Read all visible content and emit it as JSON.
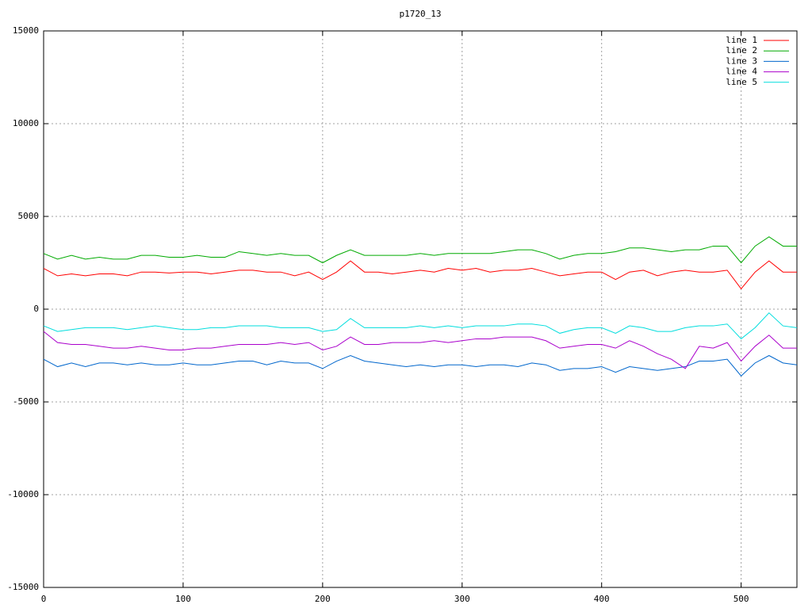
{
  "chart_data": {
    "type": "line",
    "title": "p1720_13",
    "x": [
      0,
      10,
      20,
      30,
      40,
      50,
      60,
      70,
      80,
      90,
      100,
      110,
      120,
      130,
      140,
      150,
      160,
      170,
      180,
      190,
      200,
      210,
      220,
      230,
      240,
      250,
      260,
      270,
      280,
      290,
      300,
      310,
      320,
      330,
      340,
      350,
      360,
      370,
      380,
      390,
      400,
      410,
      420,
      430,
      440,
      450,
      460,
      470,
      480,
      490,
      500,
      510,
      520,
      530,
      540
    ],
    "series": [
      {
        "name": "line 1",
        "color": "#ff0000",
        "values": [
          2200,
          1800,
          1900,
          1800,
          1900,
          1900,
          1800,
          2000,
          2000,
          1950,
          2000,
          2000,
          1900,
          2000,
          2100,
          2100,
          2000,
          2000,
          1800,
          2000,
          1600,
          2000,
          2600,
          2000,
          2000,
          1900,
          2000,
          2100,
          2000,
          2200,
          2100,
          2200,
          2000,
          2100,
          2100,
          2200,
          2000,
          1800,
          1900,
          2000,
          2000,
          1600,
          2000,
          2100,
          1800,
          2000,
          2100,
          2000,
          2000,
          2100,
          1100,
          2000,
          2600,
          2000,
          2000
        ]
      },
      {
        "name": "line 2",
        "color": "#00aa00",
        "values": [
          3000,
          2700,
          2900,
          2700,
          2800,
          2700,
          2700,
          2900,
          2900,
          2800,
          2800,
          2900,
          2800,
          2800,
          3100,
          3000,
          2900,
          3000,
          2900,
          2900,
          2500,
          2900,
          3200,
          2900,
          2900,
          2900,
          2900,
          3000,
          2900,
          3000,
          3000,
          3000,
          3000,
          3100,
          3200,
          3200,
          3000,
          2700,
          2900,
          3000,
          3000,
          3100,
          3300,
          3300,
          3200,
          3100,
          3200,
          3200,
          3400,
          3400,
          2500,
          3400,
          3900,
          3400,
          3400
        ]
      },
      {
        "name": "line 3",
        "color": "#0066cc",
        "values": [
          -2700,
          -3100,
          -2900,
          -3100,
          -2900,
          -2900,
          -3000,
          -2900,
          -3000,
          -3000,
          -2900,
          -3000,
          -3000,
          -2900,
          -2800,
          -2800,
          -3000,
          -2800,
          -2900,
          -2900,
          -3200,
          -2800,
          -2500,
          -2800,
          -2900,
          -3000,
          -3100,
          -3000,
          -3100,
          -3000,
          -3000,
          -3100,
          -3000,
          -3000,
          -3100,
          -2900,
          -3000,
          -3300,
          -3200,
          -3200,
          -3100,
          -3400,
          -3100,
          -3200,
          -3300,
          -3200,
          -3100,
          -2800,
          -2800,
          -2700,
          -3600,
          -2900,
          -2500,
          -2900,
          -3000
        ]
      },
      {
        "name": "line 4",
        "color": "#aa00cc",
        "values": [
          -1200,
          -1800,
          -1900,
          -1900,
          -2000,
          -2100,
          -2100,
          -2000,
          -2100,
          -2200,
          -2200,
          -2100,
          -2100,
          -2000,
          -1900,
          -1900,
          -1900,
          -1800,
          -1900,
          -1800,
          -2200,
          -2000,
          -1500,
          -1900,
          -1900,
          -1800,
          -1800,
          -1800,
          -1700,
          -1800,
          -1700,
          -1600,
          -1600,
          -1500,
          -1500,
          -1500,
          -1700,
          -2100,
          -2000,
          -1900,
          -1900,
          -2100,
          -1700,
          -2000,
          -2400,
          -2700,
          -3200,
          -2000,
          -2100,
          -1800,
          -2800,
          -2000,
          -1400,
          -2100,
          -2100
        ]
      },
      {
        "name": "line 5",
        "color": "#00dddd",
        "values": [
          -900,
          -1200,
          -1100,
          -1000,
          -1000,
          -1000,
          -1100,
          -1000,
          -900,
          -1000,
          -1100,
          -1100,
          -1000,
          -1000,
          -900,
          -900,
          -900,
          -1000,
          -1000,
          -1000,
          -1200,
          -1100,
          -500,
          -1000,
          -1000,
          -1000,
          -1000,
          -900,
          -1000,
          -900,
          -1000,
          -900,
          -900,
          -900,
          -800,
          -800,
          -900,
          -1300,
          -1100,
          -1000,
          -1000,
          -1300,
          -900,
          -1000,
          -1200,
          -1200,
          -1000,
          -900,
          -900,
          -800,
          -1600,
          -1000,
          -200,
          -900,
          -1000
        ]
      }
    ],
    "xlim": [
      0,
      540
    ],
    "xticks": [
      0,
      100,
      200,
      300,
      400,
      500
    ],
    "ylim": [
      -15000,
      15000
    ],
    "yticks": [
      -15000,
      -10000,
      -5000,
      0,
      5000,
      10000,
      15000
    ],
    "grid": true,
    "legend": "top-right"
  }
}
